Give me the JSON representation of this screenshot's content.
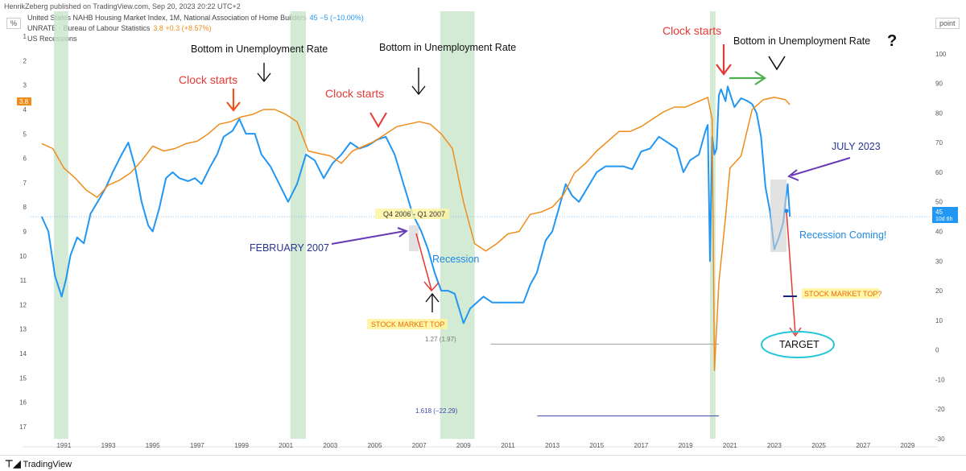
{
  "header": {
    "publisher": "HenrikZeberg published on TradingView.com, Sep 20, 2023 20:22 UTC+2",
    "left_unit": "%",
    "right_unit": "point"
  },
  "legend": [
    {
      "label": "United States NAHB Housing Market Index, 1M, National Association of Home Builders",
      "value": "45  −5 (−10.00%)",
      "color": "#2196f3"
    },
    {
      "label": "UNRATE · Bureau of Labour Statistics",
      "value": "3.8  +0.3 (+8.57%)",
      "color": "#f08c1a"
    },
    {
      "label": "US Recessions",
      "value": "",
      "color": "#4caf50"
    }
  ],
  "badges": {
    "unrate_last": "3.8",
    "nahb_last": "45",
    "nahb_countdown": "10d 6h"
  },
  "annotations": {
    "clock_starts_1": "Clock starts",
    "clock_starts_2": "Clock starts",
    "clock_starts_3": "Clock starts",
    "bottom_1": "Bottom in Unemployment Rate",
    "bottom_2": "Bottom in Unemployment Rate",
    "bottom_3": "Bottom in Unemployment Rate",
    "question": "?",
    "feb_2007": "FEBRUARY 2007",
    "q4_2006": "Q4 2006 - Q1 2007",
    "recession": "Recession",
    "stock_top_1": "STOCK MARKET TOP",
    "stock_top_2": "STOCK MARKET TOP?",
    "july_2023": "JULY 2023",
    "recession_coming": "Recession Coming!",
    "target": "TARGET",
    "fib_127": "1.27 (1.97)",
    "fib_1618": "1.618 (−22.29)"
  },
  "footer": {
    "brand": "TradingView"
  },
  "chart_data": {
    "type": "line",
    "x_axis": {
      "range": [
        1989.5,
        2030
      ],
      "ticks": [
        "1991",
        "1993",
        "1995",
        "1997",
        "1999",
        "2001",
        "2003",
        "2005",
        "2007",
        "2009",
        "2011",
        "2013",
        "2015",
        "2017",
        "2019",
        "2021",
        "2023",
        "2025",
        "2027",
        "2029"
      ]
    },
    "y_left": {
      "label": "%",
      "range": [
        17.5,
        0.5
      ],
      "ticks": [
        1,
        2,
        3,
        4,
        5,
        6,
        7,
        8,
        9,
        10,
        11,
        12,
        13,
        14,
        15,
        16,
        17
      ],
      "inverted": true
    },
    "y_right": {
      "label": "point",
      "range": [
        -30,
        110
      ],
      "ticks": [
        100,
        90,
        80,
        70,
        60,
        50,
        40,
        30,
        20,
        10,
        0,
        -10,
        -20,
        -30
      ]
    },
    "recessions": [
      [
        1990.55,
        1991.2
      ],
      [
        2001.2,
        2001.9
      ],
      [
        2007.95,
        2009.5
      ],
      [
        2020.1,
        2020.35
      ]
    ],
    "series": [
      {
        "name": "United States NAHB Housing Market Index, 1M, National Association of Home Builders",
        "axis": "right",
        "color": "#2196f3",
        "x": [
          1990.0,
          1990.3,
          1990.6,
          1990.9,
          1991.1,
          1991.3,
          1991.6,
          1991.9,
          1992.2,
          1992.6,
          1992.9,
          1993.2,
          1993.6,
          1993.9,
          1994.2,
          1994.5,
          1994.8,
          1995.0,
          1995.3,
          1995.6,
          1995.9,
          1996.2,
          1996.6,
          1996.9,
          1997.2,
          1997.6,
          1997.9,
          1998.2,
          1998.6,
          1998.9,
          1999.2,
          1999.6,
          1999.9,
          2000.3,
          2000.7,
          2001.1,
          2001.5,
          2001.9,
          2002.3,
          2002.7,
          2003.1,
          2003.5,
          2003.9,
          2004.3,
          2004.7,
          2005.1,
          2005.5,
          2005.9,
          2006.3,
          2006.7,
          2007.1,
          2007.4,
          2007.7,
          2008.0,
          2008.3,
          2008.6,
          2009.0,
          2009.3,
          2009.6,
          2009.9,
          2010.3,
          2010.7,
          2011.0,
          2011.3,
          2011.7,
          2012.0,
          2012.3,
          2012.7,
          2013.0,
          2013.3,
          2013.6,
          2013.9,
          2014.2,
          2014.6,
          2015.0,
          2015.4,
          2015.8,
          2016.2,
          2016.6,
          2017.0,
          2017.4,
          2017.8,
          2018.2,
          2018.6,
          2018.9,
          2019.2,
          2019.6,
          2019.9,
          2020.0,
          2020.1,
          2020.2,
          2020.3,
          2020.4,
          2020.5,
          2020.6,
          2020.8,
          2020.9,
          2021.2,
          2021.5,
          2021.8,
          2022.0,
          2022.2,
          2022.4,
          2022.6,
          2022.8,
          2023.0,
          2023.2,
          2023.4,
          2023.5,
          2023.6,
          2023.7
        ],
        "values": [
          45,
          40,
          25,
          18,
          24,
          32,
          38,
          36,
          46,
          51,
          55,
          60,
          66,
          70,
          62,
          50,
          42,
          40,
          48,
          58,
          60,
          58,
          57,
          58,
          56,
          62,
          66,
          72,
          74,
          78,
          73,
          73,
          66,
          62,
          56,
          50,
          56,
          66,
          64,
          58,
          63,
          66,
          70,
          68,
          69,
          71,
          72,
          66,
          56,
          46,
          40,
          34,
          26,
          20,
          20,
          19,
          9,
          14,
          16,
          18,
          16,
          16,
          16,
          16,
          16,
          22,
          26,
          37,
          40,
          48,
          56,
          52,
          50,
          55,
          60,
          62,
          62,
          62,
          61,
          67,
          68,
          72,
          70,
          68,
          60,
          64,
          66,
          74,
          76,
          30,
          72,
          66,
          68,
          86,
          88,
          84,
          89,
          82,
          85,
          84,
          83,
          80,
          72,
          55,
          47,
          34,
          38,
          43,
          50,
          56,
          45
        ]
      },
      {
        "name": "UNRATE · Bureau of Labour Statistics",
        "axis": "left",
        "color": "#f08c1a",
        "x": [
          1990.0,
          1990.5,
          1991.0,
          1991.5,
          1992.0,
          1992.5,
          1993.0,
          1993.5,
          1994.0,
          1994.5,
          1995.0,
          1995.5,
          1996.0,
          1996.5,
          1997.0,
          1997.5,
          1998.0,
          1998.5,
          1999.0,
          1999.5,
          2000.0,
          2000.5,
          2001.0,
          2001.5,
          2002.0,
          2002.5,
          2003.0,
          2003.5,
          2004.0,
          2004.5,
          2005.0,
          2005.5,
          2006.0,
          2006.5,
          2007.0,
          2007.5,
          2008.0,
          2008.5,
          2009.0,
          2009.5,
          2010.0,
          2010.5,
          2011.0,
          2011.5,
          2012.0,
          2012.5,
          2013.0,
          2013.5,
          2014.0,
          2014.5,
          2015.0,
          2015.5,
          2016.0,
          2016.5,
          2017.0,
          2017.5,
          2018.0,
          2018.5,
          2019.0,
          2019.5,
          2020.0,
          2020.2,
          2020.3,
          2020.5,
          2020.8,
          2021.0,
          2021.5,
          2022.0,
          2022.5,
          2023.0,
          2023.5,
          2023.7
        ],
        "values": [
          5.4,
          5.6,
          6.4,
          6.8,
          7.3,
          7.6,
          7.1,
          6.9,
          6.6,
          6.1,
          5.5,
          5.7,
          5.6,
          5.4,
          5.3,
          5.0,
          4.6,
          4.5,
          4.3,
          4.2,
          4.0,
          4.0,
          4.2,
          4.5,
          5.7,
          5.8,
          5.9,
          6.2,
          5.7,
          5.5,
          5.3,
          5.0,
          4.7,
          4.6,
          4.5,
          4.6,
          5.0,
          5.6,
          7.8,
          9.5,
          9.8,
          9.5,
          9.1,
          9.0,
          8.3,
          8.2,
          8.0,
          7.5,
          6.6,
          6.2,
          5.7,
          5.3,
          4.9,
          4.9,
          4.7,
          4.4,
          4.1,
          3.9,
          3.9,
          3.7,
          3.5,
          4.4,
          14.7,
          11.1,
          8.4,
          6.4,
          5.9,
          4.0,
          3.6,
          3.5,
          3.6,
          3.8
        ]
      }
    ],
    "levels": [
      {
        "label": "1.27 (1.97)",
        "value": 1.97,
        "x_range": [
          2007.5,
          2020.5
        ],
        "color": "#9e9e9e"
      },
      {
        "label": "1.618 (−22.29)",
        "value": -22.29,
        "x_range": [
          2009.6,
          2020.5
        ],
        "color": "#3949ab"
      }
    ]
  }
}
